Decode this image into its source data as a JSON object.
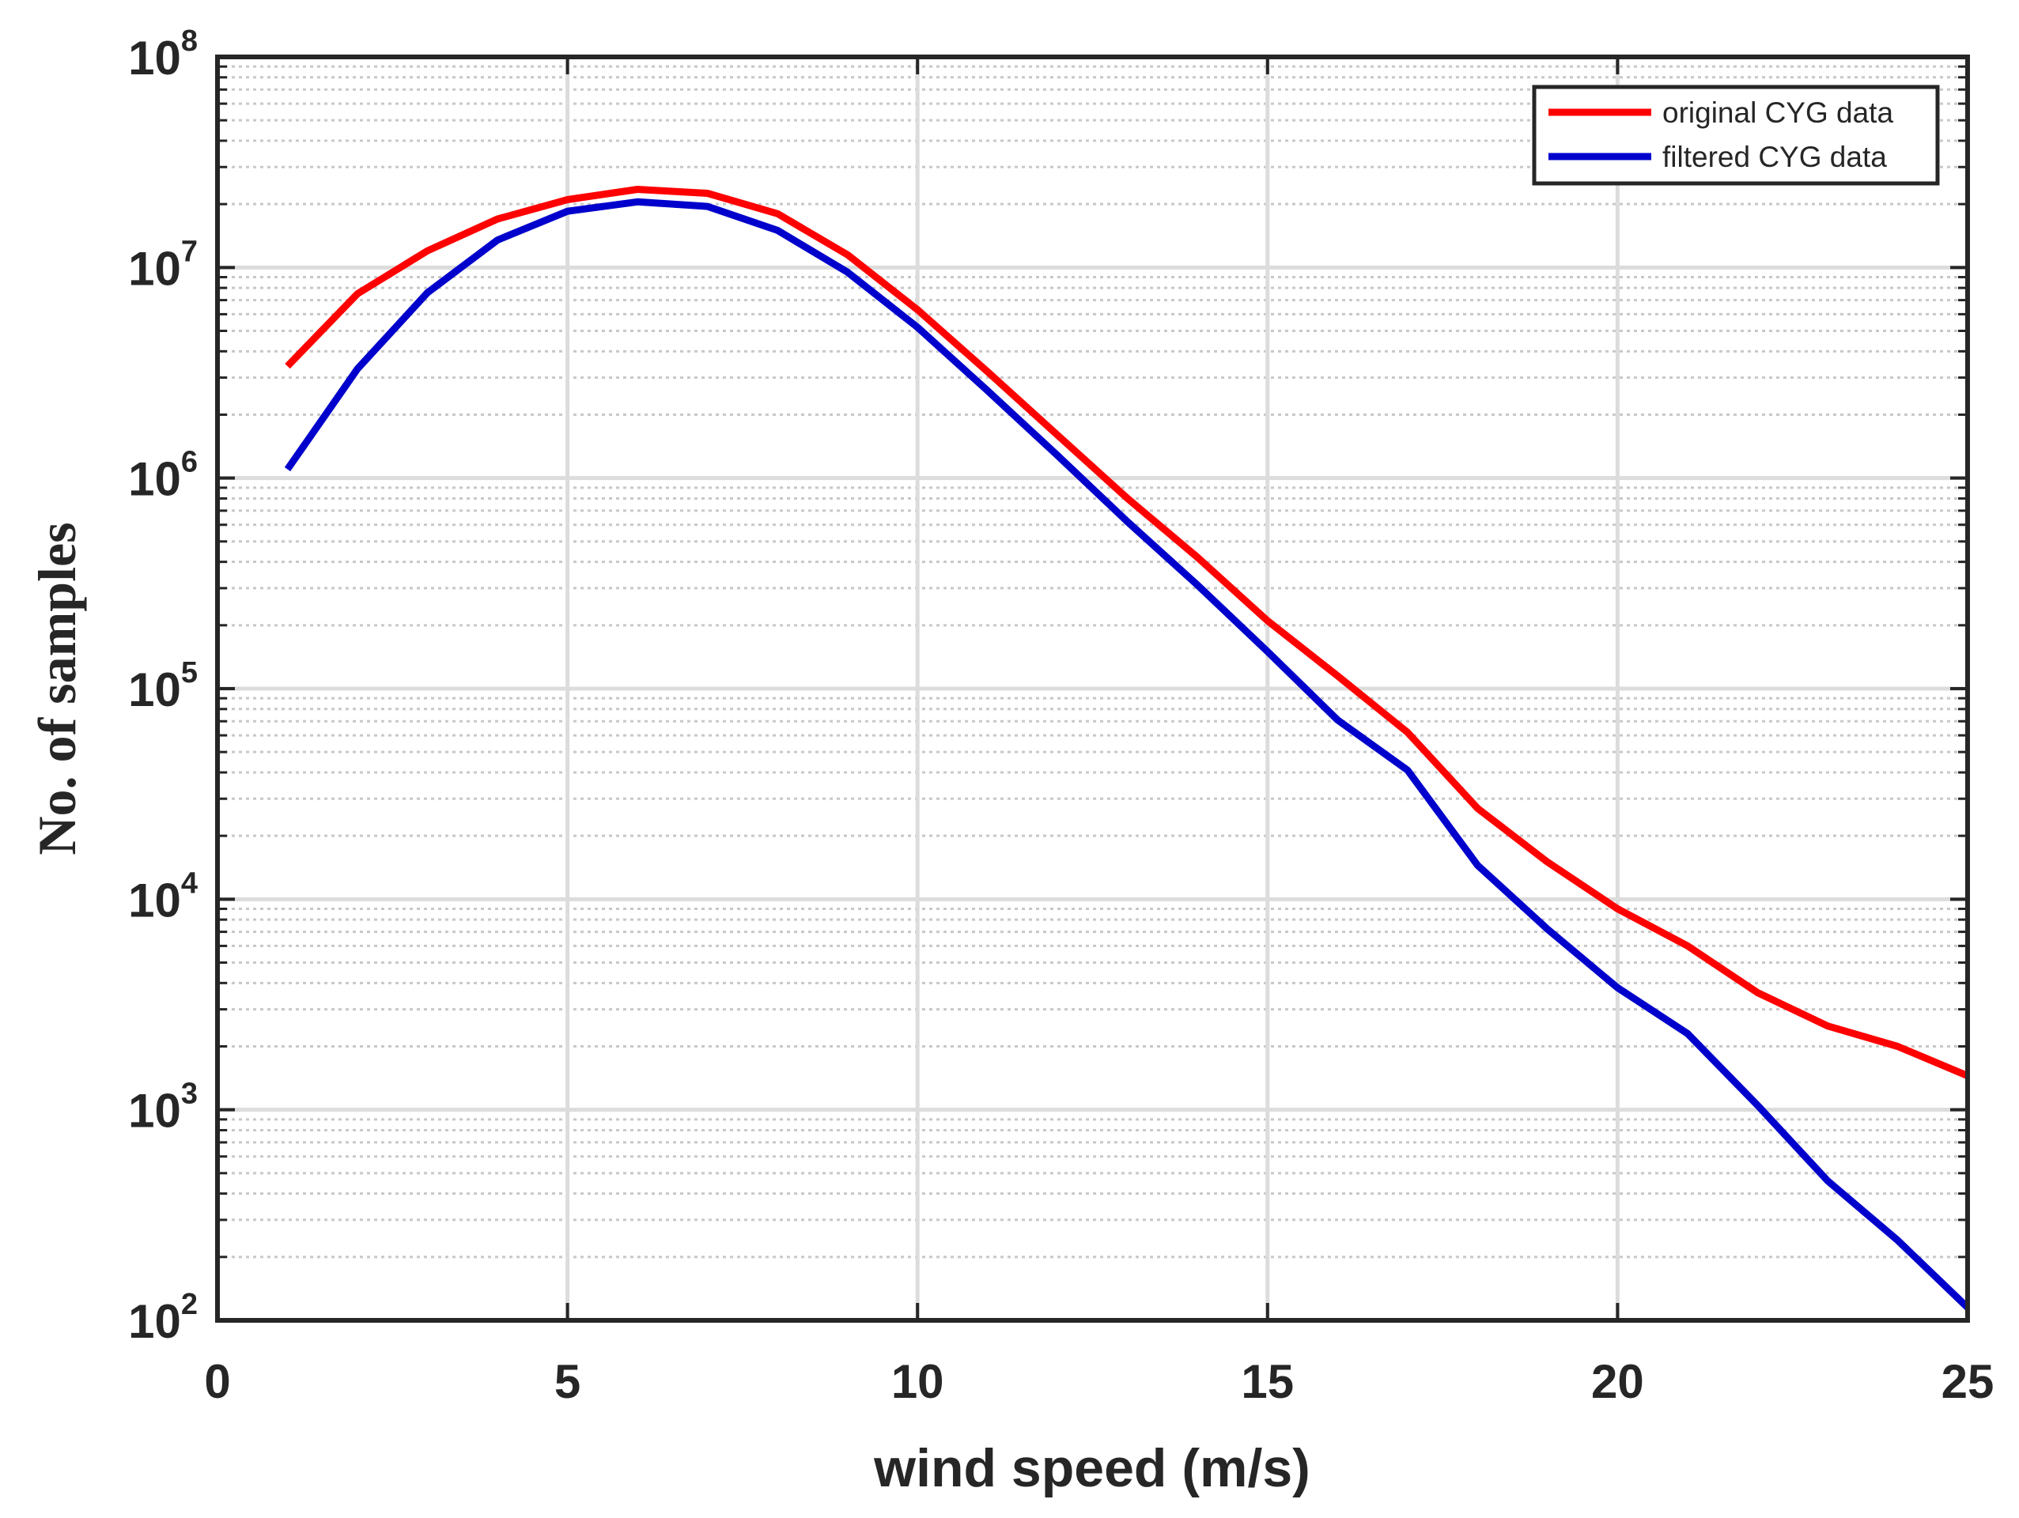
{
  "chart_data": {
    "type": "line",
    "title": "",
    "xlabel": "wind speed (m/s)",
    "ylabel": "No. of samples",
    "xlim": [
      0,
      25
    ],
    "ylim": [
      100,
      100000000
    ],
    "yscale": "log",
    "grid": true,
    "legend_position": "top-right",
    "x_ticks": [
      "0",
      "5",
      "10",
      "15",
      "20",
      "25"
    ],
    "y_ticks": [
      {
        "base": "10",
        "exp": "2"
      },
      {
        "base": "10",
        "exp": "3"
      },
      {
        "base": "10",
        "exp": "4"
      },
      {
        "base": "10",
        "exp": "5"
      },
      {
        "base": "10",
        "exp": "6"
      },
      {
        "base": "10",
        "exp": "7"
      },
      {
        "base": "10",
        "exp": "8"
      }
    ],
    "series": [
      {
        "name": "original CYG data",
        "color": "#ff0000",
        "x": [
          1,
          2,
          3,
          4,
          5,
          6,
          7,
          8,
          9,
          10,
          11,
          12,
          13,
          14,
          15,
          16,
          17,
          18,
          19,
          20,
          21,
          22,
          23,
          24,
          25
        ],
        "values": [
          3400000,
          7500000,
          12000000,
          17000000,
          21000000,
          23500000,
          22500000,
          18000000,
          11500000,
          6300000,
          3200000,
          1600000,
          800000,
          420000,
          210000,
          115000,
          62000,
          27000,
          15000,
          9000,
          6000,
          3600,
          2500,
          2000,
          1450
        ]
      },
      {
        "name": "filtered CYG data",
        "color": "#0000cc",
        "x": [
          1,
          2,
          3,
          4,
          5,
          6,
          7,
          8,
          9,
          10,
          11,
          12,
          13,
          14,
          15,
          16,
          17,
          18,
          19,
          20,
          21,
          22,
          23,
          24,
          25
        ],
        "values": [
          1100000,
          3300000,
          7600000,
          13500000,
          18500000,
          20500000,
          19500000,
          15000000,
          9500000,
          5200000,
          2600000,
          1280000,
          620000,
          310000,
          150000,
          71000,
          41000,
          14500,
          7200,
          3800,
          2300,
          1050,
          460,
          240,
          115
        ]
      }
    ]
  }
}
